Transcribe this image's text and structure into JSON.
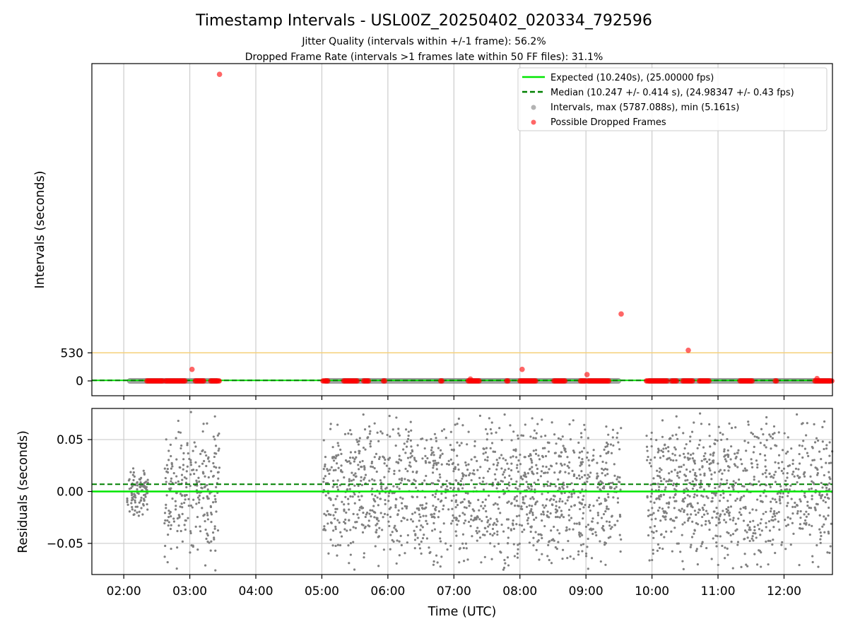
{
  "chart_data": [
    {
      "type": "scatter",
      "title": "Timestamp Intervals - USL00Z_20250402_020334_792596",
      "subtitles": [
        "Jitter Quality (intervals within +/-1 frame): 56.2%",
        "Dropped Frame Rate (intervals >1 frames late within 50 FF files): 31.1%"
      ],
      "xlabel": "",
      "ylabel": "Intervals (seconds)",
      "x_ticks": [
        "02:00",
        "03:00",
        "04:00",
        "05:00",
        "06:00",
        "07:00",
        "08:00",
        "09:00",
        "10:00",
        "11:00",
        "12:00"
      ],
      "xlim": [
        "01:31",
        "12:44"
      ],
      "yticks": [
        0,
        530
      ],
      "ylim": [
        -280,
        5990
      ],
      "threshold_line": 530,
      "expected": 10.24,
      "median": 10.247,
      "grid": "vertical",
      "legend_position": "top-right",
      "legend": [
        "Expected (10.240s), (25.00000 fps)",
        "Median (10.247 +/- 0.414 s), (24.98347 +/- 0.43 fps)",
        "Intervals, max (5787.088s), min (5.161s)",
        "Possible Dropped Frames"
      ],
      "interval_segments": [
        [
          "02:03",
          "03:27"
        ],
        [
          "05:01",
          "09:32"
        ],
        [
          "09:55",
          "12:44"
        ]
      ],
      "dropped_clusters": [
        [
          "02:21",
          "02:36"
        ],
        [
          "02:38",
          "02:56"
        ],
        [
          "03:05",
          "03:13"
        ],
        [
          "03:19",
          "03:27"
        ],
        [
          "05:01",
          "05:06"
        ],
        [
          "05:20",
          "05:33"
        ],
        [
          "05:38",
          "05:43"
        ],
        [
          "05:56",
          "05:58"
        ],
        [
          "06:48",
          "06:50"
        ],
        [
          "07:13",
          "07:23"
        ],
        [
          "07:48",
          "07:50"
        ],
        [
          "08:00",
          "08:15"
        ],
        [
          "08:31",
          "08:42"
        ],
        [
          "08:55",
          "09:00"
        ],
        [
          "09:02",
          "09:21"
        ],
        [
          "09:55",
          "10:14"
        ],
        [
          "10:18",
          "10:23"
        ],
        [
          "10:28",
          "10:37"
        ],
        [
          "10:43",
          "10:52"
        ],
        [
          "11:20",
          "11:32"
        ],
        [
          "11:52",
          "11:54"
        ],
        [
          "12:28",
          "12:44"
        ]
      ],
      "dropped_points": [
        {
          "x": "03:02",
          "y": 218
        },
        {
          "x": "03:27",
          "y": 5787
        },
        {
          "x": "07:15",
          "y": 35
        },
        {
          "x": "08:02",
          "y": 218
        },
        {
          "x": "09:01",
          "y": 120
        },
        {
          "x": "09:32",
          "y": 1263
        },
        {
          "x": "10:33",
          "y": 578
        },
        {
          "x": "12:30",
          "y": 45
        }
      ]
    },
    {
      "type": "scatter",
      "xlabel": "Time (UTC)",
      "ylabel": "Residuals (seconds)",
      "x_ticks": [
        "02:00",
        "03:00",
        "04:00",
        "05:00",
        "06:00",
        "07:00",
        "08:00",
        "09:00",
        "10:00",
        "11:00",
        "12:00"
      ],
      "xlim": [
        "01:31",
        "12:44"
      ],
      "yticks": [
        "0.05",
        "0.00",
        "−0.05"
      ],
      "ylim": [
        -0.08,
        0.08
      ],
      "expected": 0.0,
      "median": 0.007,
      "grid": "both",
      "residual_segments": [
        {
          "range": [
            "02:03",
            "02:22"
          ],
          "spread": 0.03
        },
        {
          "range": [
            "02:37",
            "03:27"
          ],
          "spread": 0.08
        },
        {
          "range": [
            "05:01",
            "09:32"
          ],
          "spread": 0.08
        },
        {
          "range": [
            "09:55",
            "12:44"
          ],
          "spread": 0.08
        }
      ]
    }
  ],
  "colors": {
    "expected": "#00e600",
    "median": "#008000",
    "interval": "#808080",
    "dropped": "#ff0000",
    "threshold": "#f5d07a",
    "grid": "#cccccc"
  }
}
